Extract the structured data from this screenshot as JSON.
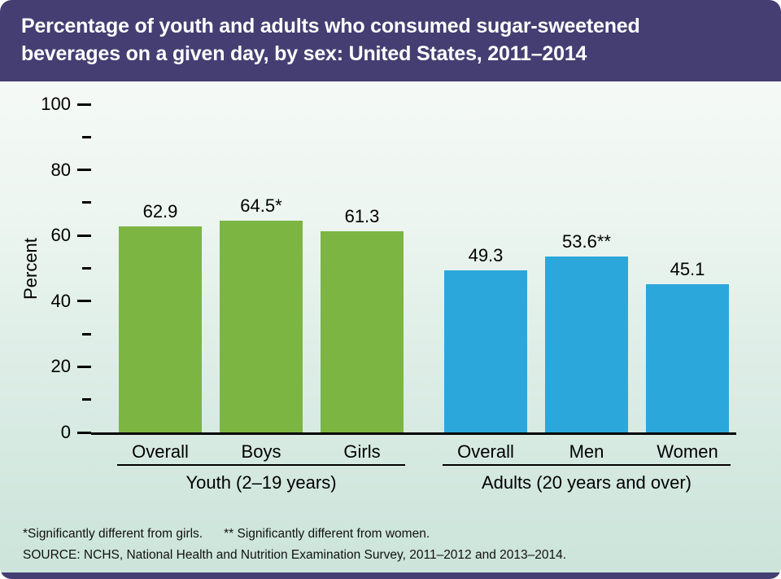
{
  "header": {
    "title_line1": "Percentage of youth and adults who consumed sugar-sweetened",
    "title_line2": "beverages on a given day, by sex: United States, 2011–2014"
  },
  "chart_data": {
    "type": "bar",
    "title": "Percentage of youth and adults who consumed sugar-sweetened beverages on a given day, by sex: United States, 2011–2014",
    "xlabel": "",
    "ylabel": "Percent",
    "ylim": [
      0,
      100
    ],
    "yticks_major": [
      0,
      20,
      40,
      60,
      80,
      100
    ],
    "yticks_minor": [
      10,
      30,
      50,
      70,
      90
    ],
    "grid": false,
    "legend": "none",
    "groups": [
      {
        "label": "Youth (2–19 years)",
        "color": "#7cb542",
        "bars": [
          {
            "category": "Overall",
            "value": 62.9,
            "label": "62.9"
          },
          {
            "category": "Boys",
            "value": 64.5,
            "label": "64.5*"
          },
          {
            "category": "Girls",
            "value": 61.3,
            "label": "61.3"
          }
        ]
      },
      {
        "label": "Adults (20 years and over)",
        "color": "#2ba7dc",
        "bars": [
          {
            "category": "Overall",
            "value": 49.3,
            "label": "49.3"
          },
          {
            "category": "Men",
            "value": 53.6,
            "label": "53.6**"
          },
          {
            "category": "Women",
            "value": 45.1,
            "label": "45.1"
          }
        ]
      }
    ]
  },
  "footnotes": {
    "note1": "*Significantly different from girls.",
    "note2": "** Significantly different from women.",
    "source": "SOURCE: NCHS, National Health and Nutrition Examination Survey, 2011–2012 and 2013–2014."
  },
  "colors": {
    "header_bg": "#443e72",
    "footer_strip": "#443e72",
    "youth_bar": "#7cb542",
    "adults_bar": "#2ba7dc",
    "axis": "#000000",
    "background_top": "#f9fcfa",
    "background_bottom": "#cbe4da"
  }
}
